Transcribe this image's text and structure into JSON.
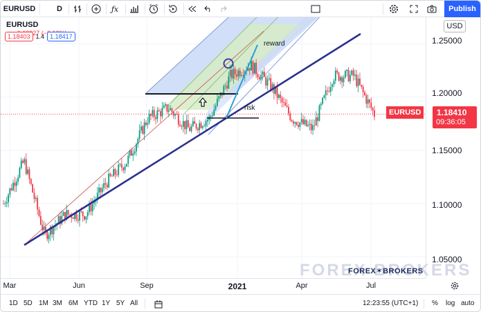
{
  "toolbar": {
    "symbol": "EURUSD",
    "interval": "D",
    "publish_label": "Publish",
    "icons": [
      "bars-style-icon",
      "add-compare-icon",
      "indicators-icon",
      "templates-icon",
      "alert-icon",
      "replay-icon",
      "undo-icon",
      "redo-icon",
      "fullscreen-toggle-icon",
      "settings-icon",
      "fullscreen-icon",
      "screenshot-icon"
    ]
  },
  "legend": {
    "symbol": "EURUSD",
    "change": "−0.00227 (−0.19%)",
    "bid": "1.18403",
    "spread": "1.4",
    "ask": "1.18417"
  },
  "price_axis": {
    "currency": "USD",
    "ticks": [
      "1.25000",
      "1.20000",
      "1.15000",
      "1.10000",
      "1.05000"
    ],
    "symbol_label": "EURUSD",
    "last_price": "1.18410",
    "countdown": "09:36:05"
  },
  "time_axis": {
    "ticks": [
      "Mar",
      "Jun",
      "Sep",
      "2021",
      "Apr",
      "Jul"
    ]
  },
  "bottom_bar": {
    "ranges": [
      "1D",
      "5D",
      "1M",
      "3M",
      "6M",
      "YTD",
      "1Y",
      "5Y",
      "All"
    ],
    "clock": "12:23:55 (UTC+1)",
    "percent_label": "%",
    "log_label": "log",
    "auto_label": "auto"
  },
  "annotations": {
    "reward": "reward",
    "risk": "risk"
  },
  "watermark": {
    "brand": "FOREX BROKERS",
    "brand_logo": "FOREX✶BROKERS"
  },
  "colors": {
    "accent": "#2962ff",
    "trendline": "#2b2f8f",
    "down": "#f23645",
    "up": "#089981",
    "fib_blue": "#c7d7f5",
    "fib_green": "#d6ecc8"
  },
  "chart_data": {
    "type": "candlestick",
    "symbol": "EURUSD",
    "timeframe": "D",
    "y_range": [
      1.03,
      1.275
    ],
    "x_ticks": [
      "Mar",
      "Jun",
      "Sep",
      "2021",
      "Apr",
      "Jul"
    ],
    "last_price": 1.1841,
    "approx_close_path": [
      {
        "t": "Mar 2020",
        "v": 1.1
      },
      {
        "t": "Mar 2020",
        "v": 1.14
      },
      {
        "t": "Mar 2020",
        "v": 1.07
      },
      {
        "t": "Apr 2020",
        "v": 1.09
      },
      {
        "t": "May 2020",
        "v": 1.09
      },
      {
        "t": "Jun 2020",
        "v": 1.12
      },
      {
        "t": "Jul 2020",
        "v": 1.14
      },
      {
        "t": "Aug 2020",
        "v": 1.18
      },
      {
        "t": "Sep 2020",
        "v": 1.19
      },
      {
        "t": "Oct 2020",
        "v": 1.17
      },
      {
        "t": "Nov 2020",
        "v": 1.18
      },
      {
        "t": "Dec 2020",
        "v": 1.22
      },
      {
        "t": "Jan 2021",
        "v": 1.23
      },
      {
        "t": "Feb 2021",
        "v": 1.21
      },
      {
        "t": "Mar 2021",
        "v": 1.18
      },
      {
        "t": "Apr 2021",
        "v": 1.17
      },
      {
        "t": "May 2021",
        "v": 1.22
      },
      {
        "t": "Jun 2021",
        "v": 1.22
      },
      {
        "t": "Jul 2021",
        "v": 1.184
      }
    ]
  }
}
